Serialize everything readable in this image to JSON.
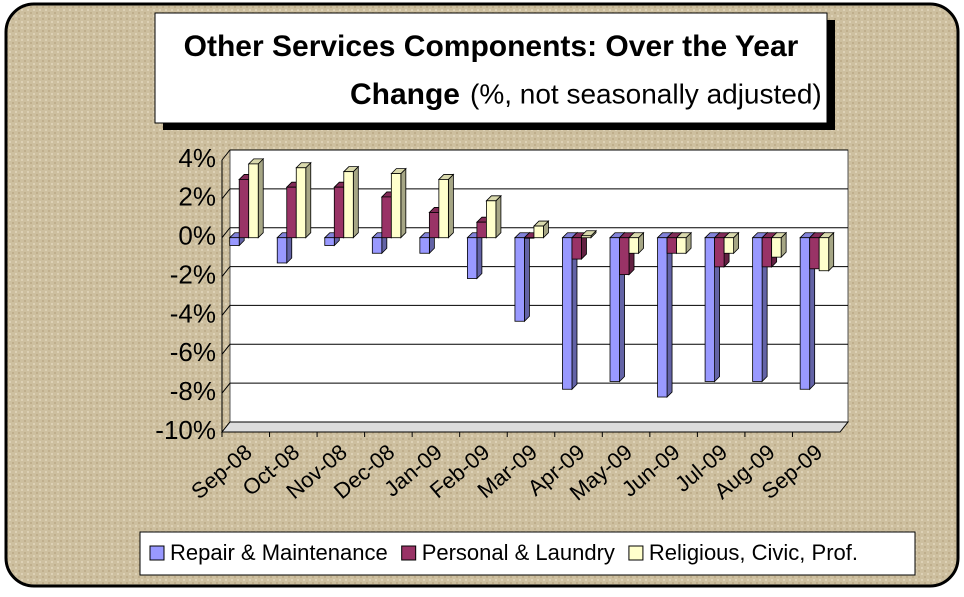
{
  "chart_data": {
    "type": "bar",
    "title": "Other Services Components: Over the Year",
    "title2": "Change",
    "subtitle": "(%, not seasonally adjusted)",
    "categories": [
      "Sep-08",
      "Oct-08",
      "Nov-08",
      "Dec-08",
      "Jan-09",
      "Feb-09",
      "Mar-09",
      "Apr-09",
      "May-09",
      "Jun-09",
      "Jul-09",
      "Aug-09",
      "Sep-09"
    ],
    "series": [
      {
        "name": "Repair & Maintenance",
        "color": "#9999ff",
        "values": [
          -0.4,
          -1.3,
          -0.4,
          -0.8,
          -0.8,
          -2.1,
          -4.3,
          -7.8,
          -7.4,
          -8.2,
          -7.4,
          -7.4,
          -7.8
        ]
      },
      {
        "name": "Personal & Laundry",
        "color": "#993366",
        "values": [
          3.0,
          2.6,
          2.6,
          2.1,
          1.3,
          0.8,
          0.0,
          -1.1,
          -1.9,
          -0.8,
          -1.5,
          -1.5,
          -1.6
        ]
      },
      {
        "name": "Religious, Civic, Prof.",
        "color": "#ffffcc",
        "values": [
          3.8,
          3.6,
          3.4,
          3.3,
          3.0,
          1.9,
          0.6,
          0.1,
          -0.8,
          -0.8,
          -0.8,
          -1.0,
          -1.7
        ]
      }
    ],
    "ylim": [
      -10,
      4
    ],
    "yticks": [
      {
        "value": -10,
        "label": "-10%"
      },
      {
        "value": -8,
        "label": "-8%"
      },
      {
        "value": -6,
        "label": "-6%"
      },
      {
        "value": -4,
        "label": "-4%"
      },
      {
        "value": -2,
        "label": "-2%"
      },
      {
        "value": 0,
        "label": "0%"
      },
      {
        "value": 2,
        "label": "2%"
      },
      {
        "value": 4,
        "label": "4%"
      }
    ],
    "grid": true,
    "legend": "bottom"
  }
}
